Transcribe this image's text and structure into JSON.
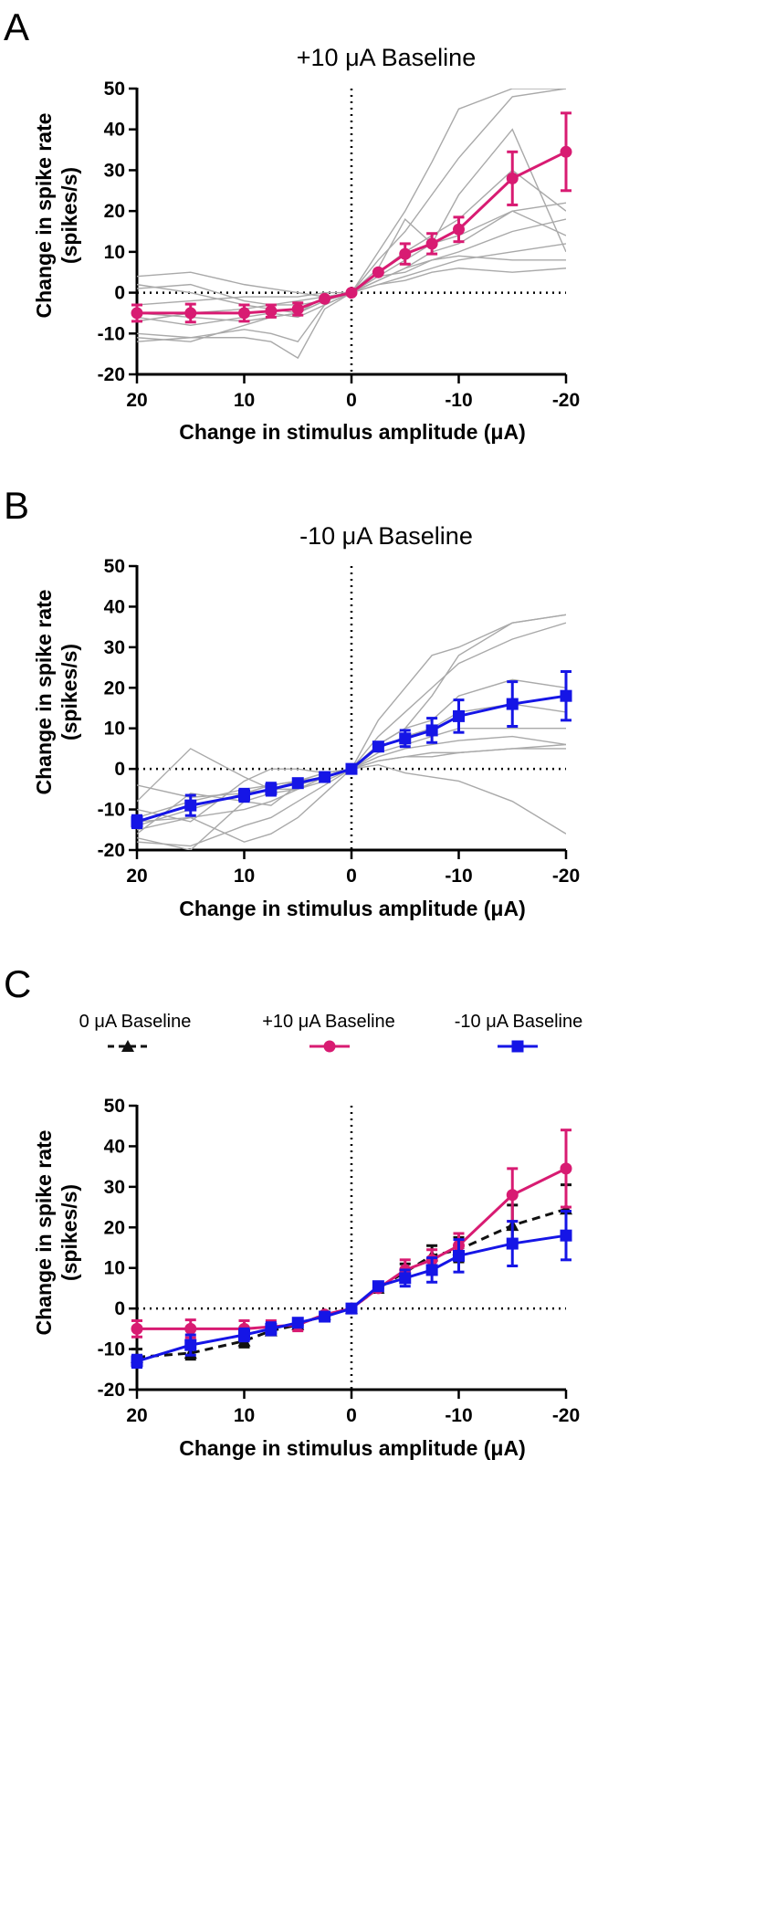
{
  "figure": {
    "colors": {
      "magenta": "#d81b72",
      "blue": "#1515e6",
      "black": "#111111",
      "gray": "#a9a9a9"
    }
  },
  "chart_data": [
    {
      "panel": "A",
      "type": "line",
      "title": "+10 μA Baseline",
      "xlabel": "Change in stimulus amplitude (μA)",
      "ylabel": [
        "Change in spike rate",
        "(spikes/s)"
      ],
      "xlim": [
        20,
        -20
      ],
      "ylim": [
        -20,
        50
      ],
      "xticks": [
        20,
        10,
        0,
        -10,
        -20
      ],
      "xtick_labels": [
        "20",
        "10",
        "0",
        "-10",
        "-20"
      ],
      "yticks": [
        50,
        40,
        30,
        20,
        10,
        0,
        -10,
        -20
      ],
      "ytick_labels": [
        "50",
        "40",
        "30",
        "20",
        "10",
        "0",
        "-10",
        "-20"
      ],
      "x": [
        20,
        15,
        10,
        7.5,
        5,
        2.5,
        0,
        -2.5,
        -5,
        -7.5,
        -10,
        -15,
        -20
      ],
      "series": [
        {
          "name": "+10 μA Baseline",
          "color": "#d81b72",
          "marker": "circle",
          "values": [
            -5,
            -5,
            -5,
            -4.5,
            -4,
            -1.5,
            0,
            5,
            9.5,
            12,
            15.5,
            28,
            34.5
          ],
          "err": [
            2,
            2.2,
            2,
            1.5,
            1.5,
            0,
            0,
            0,
            2.5,
            2.5,
            3,
            6.5,
            9.5
          ]
        }
      ],
      "individual": [
        [
          -11,
          -12,
          -8,
          -6,
          -5,
          -1,
          0,
          8,
          15,
          24,
          33,
          48,
          50
        ],
        [
          -7,
          -5,
          -4,
          -3,
          -2,
          -1,
          0,
          10,
          20,
          32,
          45,
          50,
          50
        ],
        [
          -3,
          -2,
          -1,
          -1,
          -1,
          0,
          0,
          5,
          10,
          14,
          18,
          30,
          20
        ],
        [
          4,
          5,
          2,
          1,
          0,
          -1,
          0,
          3,
          6,
          10,
          12,
          20,
          14
        ],
        [
          1,
          2,
          -2,
          -3,
          -3,
          -2,
          0,
          2,
          4,
          6,
          8,
          10,
          12
        ],
        [
          -12,
          -11,
          -9,
          -10,
          -12,
          -3,
          0,
          3,
          6,
          8,
          10,
          15,
          18
        ],
        [
          -10,
          -11,
          -11,
          -12,
          -16,
          -4,
          0,
          6,
          18,
          12,
          24,
          40,
          10
        ],
        [
          -6,
          -8,
          -6,
          -5,
          -6,
          -3,
          0,
          4,
          5,
          8,
          9,
          8,
          8
        ],
        [
          2,
          0,
          -3,
          -4,
          -5,
          -2,
          0,
          2,
          3,
          5,
          6,
          5,
          6
        ],
        [
          -5,
          -6,
          -7,
          -6,
          -5,
          -2,
          0,
          4,
          8,
          12,
          14,
          20,
          22
        ]
      ]
    },
    {
      "panel": "B",
      "type": "line",
      "title": "-10 μA Baseline",
      "xlabel": "Change in stimulus amplitude (μA)",
      "ylabel": [
        "Change in spike rate",
        "(spikes/s)"
      ],
      "xlim": [
        20,
        -20
      ],
      "ylim": [
        -20,
        50
      ],
      "xticks": [
        20,
        10,
        0,
        -10,
        -20
      ],
      "xtick_labels": [
        "20",
        "10",
        "0",
        "-10",
        "-20"
      ],
      "yticks": [
        50,
        40,
        30,
        20,
        10,
        0,
        -10,
        -20
      ],
      "ytick_labels": [
        "50",
        "40",
        "30",
        "20",
        "10",
        "0",
        "-10",
        "-20"
      ],
      "x": [
        20,
        15,
        10,
        7.5,
        5,
        2.5,
        0,
        -2.5,
        -5,
        -7.5,
        -10,
        -15,
        -20
      ],
      "series": [
        {
          "name": "-10 μA Baseline",
          "color": "#1515e6",
          "marker": "square",
          "values": [
            -13,
            -9,
            -6.5,
            -5,
            -3.5,
            -2,
            0,
            5.5,
            7.5,
            9.5,
            13,
            16,
            18
          ],
          "err": [
            1.5,
            2.5,
            1.5,
            1.5,
            1,
            0,
            0,
            0,
            2,
            3,
            4,
            5.5,
            6
          ]
        }
      ],
      "individual": [
        [
          -4,
          -7,
          -6,
          -5,
          -3,
          -1,
          0,
          12,
          20,
          28,
          30,
          36,
          38
        ],
        [
          -13,
          -12,
          -10,
          -8,
          -5,
          -2,
          0,
          8,
          14,
          20,
          26,
          32,
          36
        ],
        [
          -17,
          -20,
          -8,
          -6,
          -5,
          -3,
          0,
          6,
          10,
          18,
          28,
          36,
          38
        ],
        [
          -14,
          -10,
          -6,
          -4,
          -3,
          -2,
          0,
          5,
          8,
          10,
          14,
          16,
          14
        ],
        [
          -10,
          -13,
          -3,
          0,
          0,
          -1,
          0,
          4,
          6,
          8,
          10,
          10,
          10
        ],
        [
          -12,
          -8,
          -5,
          -4,
          -3,
          -1,
          0,
          3,
          5,
          6,
          7,
          8,
          6
        ],
        [
          -16,
          -6,
          -8,
          -9,
          -4,
          -2,
          0,
          2,
          3,
          4,
          4,
          5,
          5
        ],
        [
          -8,
          5,
          -2,
          -5,
          -5,
          -2,
          0,
          2,
          3,
          3,
          4,
          5,
          6
        ],
        [
          -18,
          -19,
          -14,
          -12,
          -8,
          -4,
          0,
          1,
          -1,
          -2,
          -3,
          -8,
          -16
        ],
        [
          -15,
          -12,
          -18,
          -16,
          -12,
          -6,
          0,
          6,
          10,
          12,
          18,
          22,
          20
        ]
      ]
    },
    {
      "panel": "C",
      "type": "line",
      "xlabel": "Change in stimulus amplitude (μA)",
      "ylabel": [
        "Change in spike rate",
        "(spikes/s)"
      ],
      "xlim": [
        20,
        -20
      ],
      "ylim": [
        -20,
        50
      ],
      "xticks": [
        20,
        10,
        0,
        -10,
        -20
      ],
      "xtick_labels": [
        "20",
        "10",
        "0",
        "-10",
        "-20"
      ],
      "yticks": [
        50,
        40,
        30,
        20,
        10,
        0,
        -10,
        -20
      ],
      "ytick_labels": [
        "50",
        "40",
        "30",
        "20",
        "10",
        "0",
        "-10",
        "-20"
      ],
      "legend_position": "top",
      "x": [
        20,
        15,
        10,
        7.5,
        5,
        2.5,
        0,
        -2.5,
        -5,
        -7.5,
        -10,
        -15,
        -20
      ],
      "series": [
        {
          "name": "0 μA Baseline",
          "color": "#111111",
          "marker": "triangle",
          "dashed": true,
          "values": [
            -12,
            -11,
            -8,
            -5.5,
            -4,
            -1.5,
            0,
            5,
            9,
            13,
            14.5,
            20.5,
            24.5
          ],
          "err": [
            2,
            1.5,
            1.5,
            1,
            1,
            0,
            0,
            1,
            2,
            2.5,
            3,
            5,
            6
          ]
        },
        {
          "name": "+10 μA Baseline",
          "color": "#d81b72",
          "marker": "circle",
          "dashed": false,
          "values": [
            -5,
            -5,
            -5,
            -4.5,
            -4,
            -1.5,
            0,
            5,
            9.5,
            12,
            15.5,
            28,
            34.5
          ],
          "err": [
            2,
            2.2,
            2,
            1.5,
            1.5,
            0,
            0,
            0,
            2.5,
            2.5,
            3,
            6.5,
            9.5
          ]
        },
        {
          "name": "-10 μA Baseline",
          "color": "#1515e6",
          "marker": "square",
          "dashed": false,
          "values": [
            -13,
            -9,
            -6.5,
            -5,
            -3.5,
            -2,
            0,
            5.5,
            7.5,
            9.5,
            13,
            16,
            18
          ],
          "err": [
            1.5,
            2.5,
            1.5,
            1.5,
            1,
            0,
            0,
            0,
            2,
            3,
            4,
            5.5,
            6
          ]
        }
      ]
    }
  ],
  "panels": {
    "a": {
      "letter": "A",
      "title": "+10 μA Baseline",
      "xlabel": "Change in stimulus amplitude (μA)",
      "ylabel1": "Change in spike rate",
      "ylabel2": "(spikes/s)"
    },
    "b": {
      "letter": "B",
      "title": "-10 μA Baseline",
      "xlabel": "Change in stimulus amplitude (μA)",
      "ylabel1": "Change in spike rate",
      "ylabel2": "(spikes/s)"
    },
    "c": {
      "letter": "C",
      "xlabel": "Change in stimulus amplitude (μA)",
      "ylabel1": "Change in spike rate",
      "ylabel2": "(spikes/s)",
      "legend": [
        "0 μA Baseline",
        "+10 μA Baseline",
        "-10 μA Baseline"
      ]
    }
  }
}
